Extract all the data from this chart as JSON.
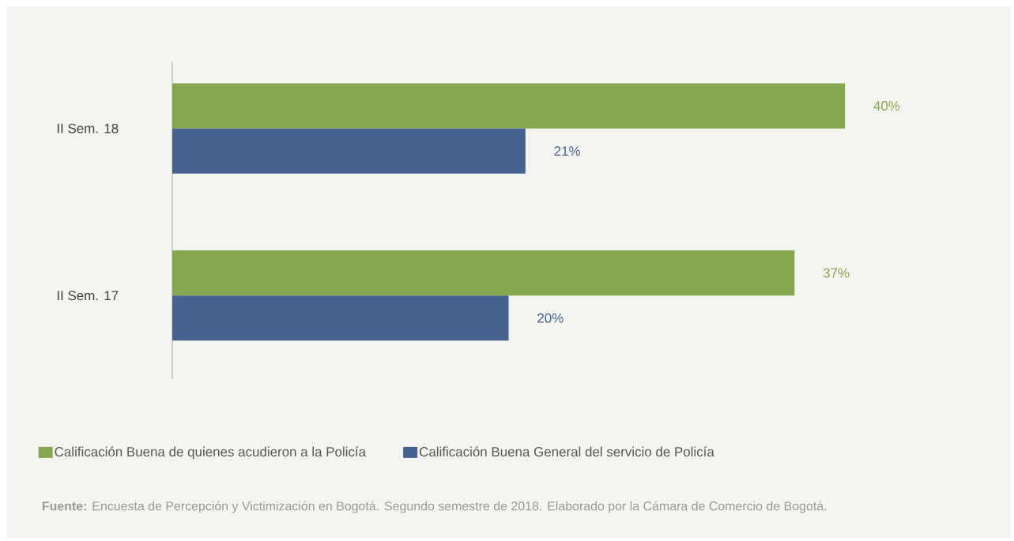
{
  "chart_data": {
    "type": "bar",
    "orientation": "horizontal",
    "categories": [
      "II Sem. 18",
      "II Sem. 17"
    ],
    "series": [
      {
        "name": "Calificación Buena de quienes acudieron a la Policía",
        "color": "#87a74f",
        "values": [
          40,
          37
        ],
        "value_labels": [
          "40%",
          "37%"
        ]
      },
      {
        "name": "Calificación Buena General del servicio de Policía",
        "color": "#466291",
        "values": [
          21,
          20
        ],
        "value_labels": [
          "21%",
          "20%"
        ]
      }
    ],
    "legend": "bottom",
    "annotations": [
      "**Fuente:** Encuesta de Percepción y Victimización en Bogotá. Segundo semestre de 2018. Elaborado por la Cámara de Comercio de Bogotá."
    ]
  }
}
